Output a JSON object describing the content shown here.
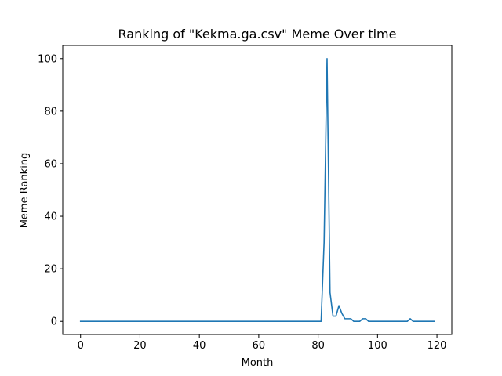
{
  "chart_data": {
    "type": "line",
    "title": "Ranking of \"Kekma.ga.csv\" Meme Over time",
    "xlabel": "Month",
    "ylabel": "Meme Ranking",
    "xlim": [
      -6,
      125
    ],
    "ylim": [
      -5,
      105
    ],
    "xticks": [
      0,
      20,
      40,
      60,
      80,
      100,
      120
    ],
    "yticks": [
      0,
      20,
      40,
      60,
      80,
      100
    ],
    "grid": false,
    "series": [
      {
        "color": "#1f77b4",
        "x": [
          0,
          1,
          2,
          3,
          4,
          5,
          6,
          7,
          8,
          9,
          10,
          11,
          12,
          13,
          14,
          15,
          16,
          17,
          18,
          19,
          20,
          21,
          22,
          23,
          24,
          25,
          26,
          27,
          28,
          29,
          30,
          31,
          32,
          33,
          34,
          35,
          36,
          37,
          38,
          39,
          40,
          41,
          42,
          43,
          44,
          45,
          46,
          47,
          48,
          49,
          50,
          51,
          52,
          53,
          54,
          55,
          56,
          57,
          58,
          59,
          60,
          61,
          62,
          63,
          64,
          65,
          66,
          67,
          68,
          69,
          70,
          71,
          72,
          73,
          74,
          75,
          76,
          77,
          78,
          79,
          80,
          81,
          82,
          83,
          84,
          85,
          86,
          87,
          88,
          89,
          90,
          91,
          92,
          93,
          94,
          95,
          96,
          97,
          98,
          99,
          100,
          101,
          102,
          103,
          104,
          105,
          106,
          107,
          108,
          109,
          110,
          111,
          112,
          113,
          114,
          115,
          116,
          117,
          118,
          119
        ],
        "values": [
          0,
          0,
          0,
          0,
          0,
          0,
          0,
          0,
          0,
          0,
          0,
          0,
          0,
          0,
          0,
          0,
          0,
          0,
          0,
          0,
          0,
          0,
          0,
          0,
          0,
          0,
          0,
          0,
          0,
          0,
          0,
          0,
          0,
          0,
          0,
          0,
          0,
          0,
          0,
          0,
          0,
          0,
          0,
          0,
          0,
          0,
          0,
          0,
          0,
          0,
          0,
          0,
          0,
          0,
          0,
          0,
          0,
          0,
          0,
          0,
          0,
          0,
          0,
          0,
          0,
          0,
          0,
          0,
          0,
          0,
          0,
          0,
          0,
          0,
          0,
          0,
          0,
          0,
          0,
          0,
          0,
          0,
          30,
          100,
          11,
          2,
          2,
          6,
          3,
          1,
          1,
          1,
          0,
          0,
          0,
          1,
          1,
          0,
          0,
          0,
          0,
          0,
          0,
          0,
          0,
          0,
          0,
          0,
          0,
          0,
          0,
          1,
          0,
          0,
          0,
          0,
          0,
          0,
          0,
          0
        ]
      }
    ]
  }
}
